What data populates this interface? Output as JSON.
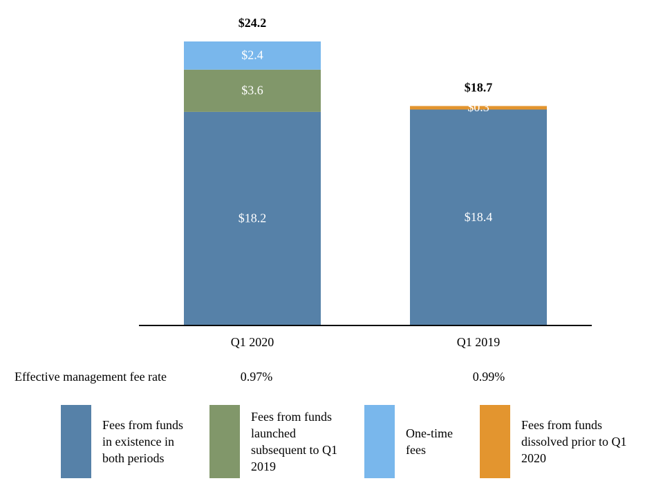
{
  "chart_data": {
    "type": "bar",
    "stacked": true,
    "categories": [
      "Q1 2020",
      "Q1 2019"
    ],
    "series": [
      {
        "name": "Fees from funds in existence in both periods",
        "color": "#5681a8",
        "values": [
          18.2,
          18.4
        ],
        "labels": [
          "$18.2",
          "$18.4"
        ]
      },
      {
        "name": "Fees from funds dissolved prior to Q1 2020",
        "color": "#e3952f",
        "values": [
          0,
          0.3
        ],
        "labels": [
          "",
          "$0.3"
        ]
      },
      {
        "name": "Fees from funds launched subsequent to Q1 2019",
        "color": "#81976a",
        "values": [
          3.6,
          0
        ],
        "labels": [
          "$3.6",
          ""
        ]
      },
      {
        "name": "One-time fees",
        "color": "#79b7ec",
        "values": [
          2.4,
          0
        ],
        "labels": [
          "$2.4",
          ""
        ]
      }
    ],
    "totals": [
      24.2,
      18.7
    ],
    "total_labels": [
      "$24.2",
      "$18.7"
    ],
    "ylim": [
      0,
      24.2
    ],
    "grid": false,
    "title": "",
    "xlabel": "",
    "ylabel": ""
  },
  "rate_row": {
    "title": "Effective management fee rate",
    "values": [
      "0.97%",
      "0.99%"
    ]
  },
  "legend": [
    {
      "label": "Fees from funds in existence in both periods",
      "color": "#5681a8"
    },
    {
      "label": "Fees from funds launched subsequent to Q1 2019",
      "color": "#81976a"
    },
    {
      "label": "One-time fees",
      "color": "#79b7ec"
    },
    {
      "label": "Fees from funds dissolved prior to Q1 2020",
      "color": "#e3952f"
    }
  ]
}
